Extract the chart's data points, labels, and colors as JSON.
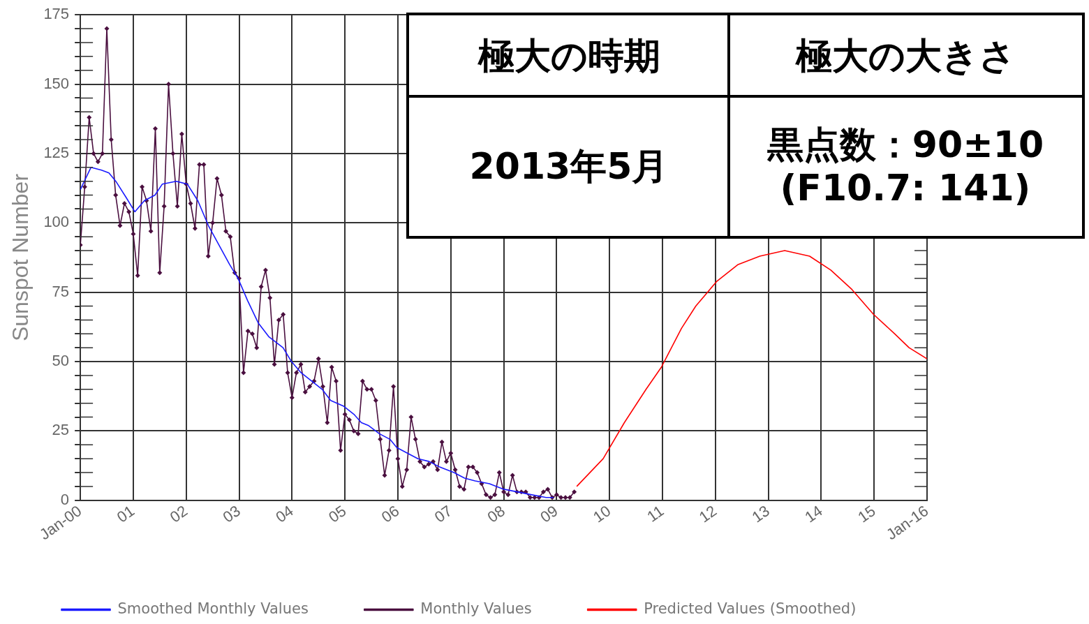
{
  "chart_data": {
    "type": "line",
    "ylabel": "Sunspot Number",
    "xlim": [
      2000,
      2016
    ],
    "ylim": [
      0,
      175
    ],
    "xticks": [
      {
        "value": 2000,
        "label": "Jan-00"
      },
      {
        "value": 2001,
        "label": "01"
      },
      {
        "value": 2002,
        "label": "02"
      },
      {
        "value": 2003,
        "label": "03"
      },
      {
        "value": 2004,
        "label": "04"
      },
      {
        "value": 2005,
        "label": "05"
      },
      {
        "value": 2006,
        "label": "06"
      },
      {
        "value": 2007,
        "label": "07"
      },
      {
        "value": 2008,
        "label": "08"
      },
      {
        "value": 2009,
        "label": "09"
      },
      {
        "value": 2010,
        "label": "10"
      },
      {
        "value": 2011,
        "label": "11"
      },
      {
        "value": 2012,
        "label": "12"
      },
      {
        "value": 2013,
        "label": "13"
      },
      {
        "value": 2014,
        "label": "14"
      },
      {
        "value": 2015,
        "label": "15"
      },
      {
        "value": 2016,
        "label": "Jan-16"
      }
    ],
    "yticks": [
      0,
      {
        "value": 5,
        "label": null
      },
      {
        "value": 10,
        "label": null
      },
      {
        "value": 15,
        "label": null
      },
      {
        "value": 20,
        "label": null
      },
      25,
      {
        "value": 30,
        "label": null
      },
      {
        "value": 35,
        "label": null
      },
      {
        "value": 40,
        "label": null
      },
      {
        "value": 45,
        "label": null
      },
      50,
      {
        "value": 55,
        "label": null
      },
      {
        "value": 60,
        "label": null
      },
      {
        "value": 65,
        "label": null
      },
      {
        "value": 70,
        "label": null
      },
      75,
      {
        "value": 80,
        "label": null
      },
      {
        "value": 85,
        "label": null
      },
      {
        "value": 90,
        "label": null
      },
      {
        "value": 95,
        "label": null
      },
      100,
      {
        "value": 105,
        "label": null
      },
      {
        "value": 110,
        "label": null
      },
      {
        "value": 115,
        "label": null
      },
      {
        "value": 120,
        "label": null
      },
      125,
      {
        "value": 130,
        "label": null
      },
      {
        "value": 135,
        "label": null
      },
      {
        "value": 140,
        "label": null
      },
      {
        "value": 145,
        "label": null
      },
      150,
      {
        "value": 155,
        "label": null
      },
      {
        "value": 160,
        "label": null
      },
      {
        "value": 165,
        "label": null
      },
      {
        "value": 170,
        "label": null
      },
      175
    ],
    "grid": true,
    "legend": "bottom",
    "annotations": [
      "極大の時期",
      "極大の大きさ",
      "2013年5月",
      "黒点数：90±10",
      "(F10.7: 141)"
    ],
    "series": [
      {
        "name": "Smoothed Monthly Values",
        "color": "#1a1aff",
        "marker": "none",
        "x": [
          2000.0,
          2000.2,
          2000.4,
          2000.54,
          2000.67,
          2000.87,
          2001.03,
          2001.21,
          2001.41,
          2001.55,
          2001.81,
          2002.02,
          2002.22,
          2002.42,
          2002.62,
          2002.82,
          2002.98,
          2003.16,
          2003.36,
          2003.56,
          2003.83,
          2003.99,
          2004.17,
          2004.37,
          2004.57,
          2004.73,
          2004.97,
          2005.17,
          2005.31,
          2005.44,
          2005.65,
          2005.85,
          2005.98,
          2006.18,
          2006.38,
          2006.59,
          2006.79,
          2007.06,
          2007.26,
          2007.46,
          2007.73,
          2008.0,
          2008.27,
          2008.53,
          2008.8,
          2008.94
        ],
        "values": [
          112,
          120,
          119,
          118,
          115,
          109,
          104,
          108,
          110,
          114,
          115,
          114,
          108,
          99,
          92,
          85,
          80,
          72,
          64,
          59,
          55,
          50,
          46,
          43,
          40,
          36,
          34,
          31,
          28,
          27,
          24,
          22,
          19,
          17,
          15,
          14,
          12,
          10,
          8,
          7,
          6,
          4,
          3,
          2,
          1,
          1
        ]
      },
      {
        "name": "Monthly Values",
        "color": "#4a0f3f",
        "marker": "diamond",
        "x": [
          2000.0,
          2000.083,
          2000.167,
          2000.25,
          2000.333,
          2000.417,
          2000.5,
          2000.583,
          2000.667,
          2000.75,
          2000.833,
          2000.917,
          2001.0,
          2001.083,
          2001.167,
          2001.25,
          2001.333,
          2001.417,
          2001.5,
          2001.583,
          2001.667,
          2001.75,
          2001.833,
          2001.917,
          2002.0,
          2002.083,
          2002.167,
          2002.25,
          2002.333,
          2002.417,
          2002.5,
          2002.583,
          2002.667,
          2002.75,
          2002.833,
          2002.917,
          2003.0,
          2003.083,
          2003.167,
          2003.25,
          2003.333,
          2003.417,
          2003.5,
          2003.583,
          2003.667,
          2003.75,
          2003.833,
          2003.917,
          2004.0,
          2004.083,
          2004.167,
          2004.25,
          2004.333,
          2004.417,
          2004.5,
          2004.583,
          2004.667,
          2004.75,
          2004.833,
          2004.917,
          2005.0,
          2005.083,
          2005.167,
          2005.25,
          2005.333,
          2005.417,
          2005.5,
          2005.583,
          2005.667,
          2005.75,
          2005.833,
          2005.917,
          2006.0,
          2006.083,
          2006.167,
          2006.25,
          2006.333,
          2006.417,
          2006.5,
          2006.583,
          2006.667,
          2006.75,
          2006.833,
          2006.917,
          2007.0,
          2007.083,
          2007.167,
          2007.25,
          2007.333,
          2007.417,
          2007.5,
          2007.583,
          2007.667,
          2007.75,
          2007.833,
          2007.917,
          2008.0,
          2008.083,
          2008.167,
          2008.25,
          2008.333,
          2008.417,
          2008.5,
          2008.583,
          2008.667,
          2008.75,
          2008.833,
          2008.917,
          2009.0,
          2009.083,
          2009.167,
          2009.25,
          2009.333
        ],
        "values": [
          92,
          113,
          138,
          125,
          122,
          125,
          170,
          130,
          110,
          99,
          107,
          104,
          96,
          81,
          113,
          108,
          97,
          134,
          82,
          106,
          150,
          125,
          106,
          132,
          114,
          107,
          98,
          121,
          121,
          88,
          100,
          116,
          110,
          97,
          95,
          82,
          80,
          46,
          61,
          60,
          55,
          77,
          83,
          73,
          49,
          65,
          67,
          46,
          37,
          46,
          49,
          39,
          41,
          43,
          51,
          41,
          28,
          48,
          43,
          18,
          31,
          29,
          25,
          24,
          43,
          40,
          40,
          36,
          22,
          9,
          18,
          41,
          15,
          5,
          11,
          30,
          22,
          14,
          12,
          13,
          14,
          11,
          21,
          14,
          17,
          11,
          5,
          4,
          12,
          12,
          10,
          6,
          2,
          1,
          2,
          10,
          3,
          2,
          9,
          3,
          3,
          3,
          1,
          1,
          1,
          3,
          4,
          1,
          2,
          1,
          1,
          1,
          3
        ]
      },
      {
        "name": "Predicted Values (Smoothed)",
        "color": "#ff0000",
        "marker": "none",
        "x": [
          2009.38,
          2009.88,
          2010.28,
          2010.69,
          2010.98,
          2011.36,
          2011.63,
          2012.03,
          2012.43,
          2012.84,
          2013.31,
          2013.78,
          2014.18,
          2014.58,
          2014.99,
          2015.39,
          2015.66,
          2016.0
        ],
        "values": [
          5,
          15,
          28,
          40,
          48,
          62,
          70,
          79,
          85,
          88,
          90,
          88,
          83,
          76,
          67,
          60,
          55,
          51
        ]
      }
    ]
  }
}
